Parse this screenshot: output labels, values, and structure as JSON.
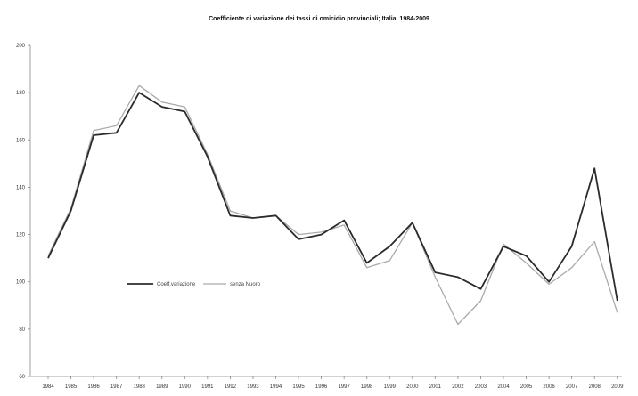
{
  "chart_data": {
    "type": "line",
    "title": "Coefficiente di variazione dei tassi di omicidio provinciali; Italia, 1984-2009",
    "x": [
      "1984",
      "1985",
      "1986",
      "1987",
      "1988",
      "1989",
      "1990",
      "1991",
      "1992",
      "1993",
      "1994",
      "1995",
      "1996",
      "1997",
      "1998",
      "1999",
      "2000",
      "2001",
      "2002",
      "2003",
      "2004",
      "2005",
      "2006",
      "2007",
      "2008",
      "2009"
    ],
    "ylim": [
      60,
      200
    ],
    "yticks": [
      "60",
      "80",
      "100",
      "120",
      "140",
      "160",
      "180",
      "200"
    ],
    "grid": false,
    "legend": "middle-left",
    "series": [
      {
        "name": "Coeff.variazione",
        "color": "#2b2b2b",
        "values": [
          110,
          130,
          162,
          163,
          180,
          174,
          172,
          153,
          128,
          127,
          128,
          118,
          120,
          126,
          108,
          115,
          125,
          104,
          102,
          97,
          115,
          111,
          100,
          115,
          148,
          92
        ]
      },
      {
        "name": "senza Nuoro",
        "color": "#aaaaaa",
        "values": [
          111,
          131,
          164,
          166,
          183,
          176,
          174,
          154,
          130,
          127,
          128,
          120,
          121,
          124,
          106,
          109,
          125,
          102,
          82,
          92,
          116,
          108,
          99,
          106,
          117,
          87
        ]
      }
    ]
  }
}
